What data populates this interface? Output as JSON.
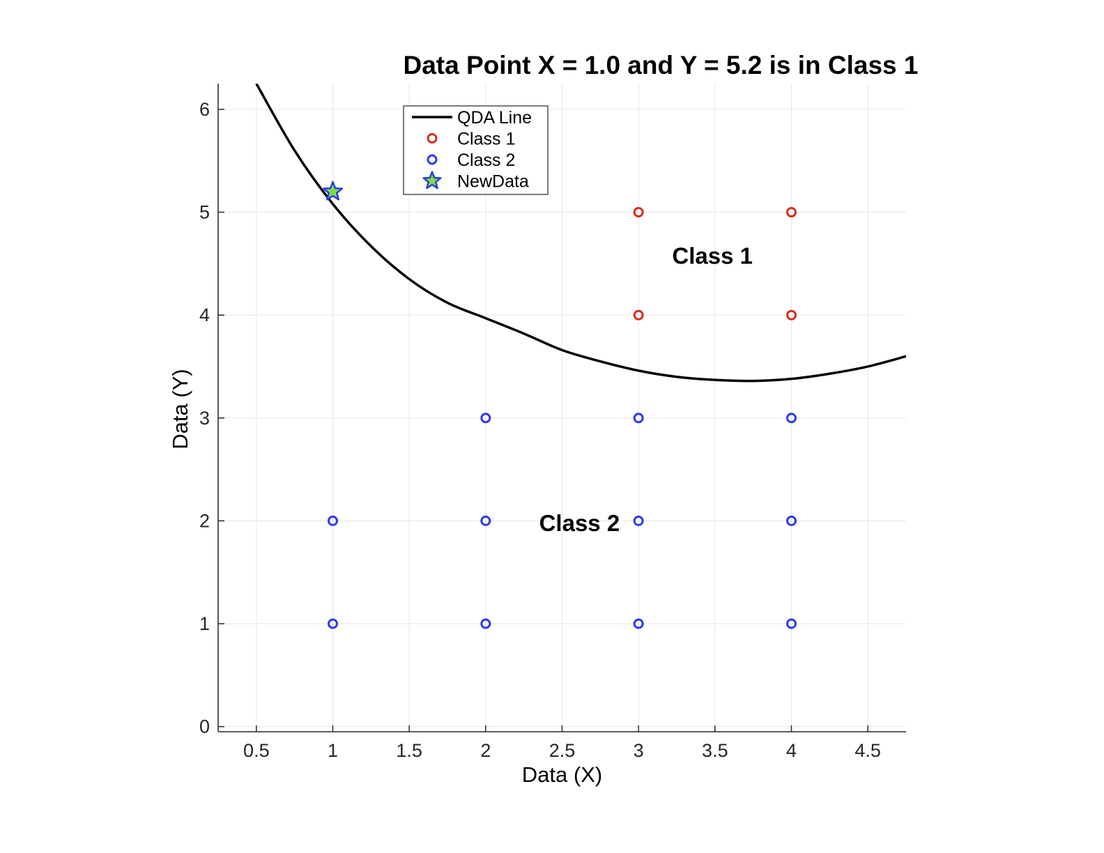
{
  "chart_data": {
    "type": "scatter",
    "title": "Data Point X = 1.0 and Y = 5.2 is in Class 1",
    "xlabel": "Data (X)",
    "ylabel": "Data (Y)",
    "xlim": [
      0.25,
      4.75
    ],
    "ylim": [
      -0.05,
      6.25
    ],
    "xticks": [
      0.5,
      1,
      1.5,
      2,
      2.5,
      3,
      3.5,
      4,
      4.5
    ],
    "xtick_labels": [
      "0.5",
      "1",
      "1.5",
      "2",
      "2.5",
      "3",
      "3.5",
      "4",
      "4.5"
    ],
    "yticks": [
      0,
      1,
      2,
      3,
      4,
      5,
      6
    ],
    "ytick_labels": [
      "0",
      "1",
      "2",
      "3",
      "4",
      "5",
      "6"
    ],
    "grid": true,
    "legend_position": "top-left",
    "series": [
      {
        "name": "QDA Line",
        "kind": "line",
        "color": "#000000",
        "x": [
          0.5,
          0.75,
          1.0,
          1.25,
          1.5,
          1.75,
          2.0,
          2.25,
          2.5,
          2.75,
          3.0,
          3.25,
          3.5,
          3.75,
          4.0,
          4.25,
          4.5,
          4.75
        ],
        "y": [
          6.25,
          5.6,
          5.08,
          4.67,
          4.35,
          4.12,
          3.97,
          3.82,
          3.66,
          3.55,
          3.46,
          3.4,
          3.37,
          3.36,
          3.38,
          3.43,
          3.5,
          3.6
        ]
      },
      {
        "name": "Class 1",
        "kind": "scatter",
        "marker": "circle",
        "color": "#d62d1f",
        "x": [
          3,
          4,
          3,
          4
        ],
        "y": [
          5,
          5,
          4,
          4
        ]
      },
      {
        "name": "Class 2",
        "kind": "scatter",
        "marker": "circle",
        "color": "#2b3af0",
        "x": [
          2,
          3,
          4,
          1,
          2,
          3,
          4,
          1,
          2,
          3,
          4
        ],
        "y": [
          3,
          3,
          3,
          2,
          2,
          2,
          2,
          1,
          1,
          1,
          1
        ]
      },
      {
        "name": "NewData",
        "kind": "scatter",
        "marker": "star",
        "color": "#2b3af0",
        "fill": "#7ee03a",
        "x": [
          1.0
        ],
        "y": [
          5.2
        ]
      }
    ],
    "annotations": [
      {
        "text": "Class 1",
        "x": 3.22,
        "y": 4.5
      },
      {
        "text": "Class 2",
        "x": 2.35,
        "y": 1.9
      }
    ]
  }
}
